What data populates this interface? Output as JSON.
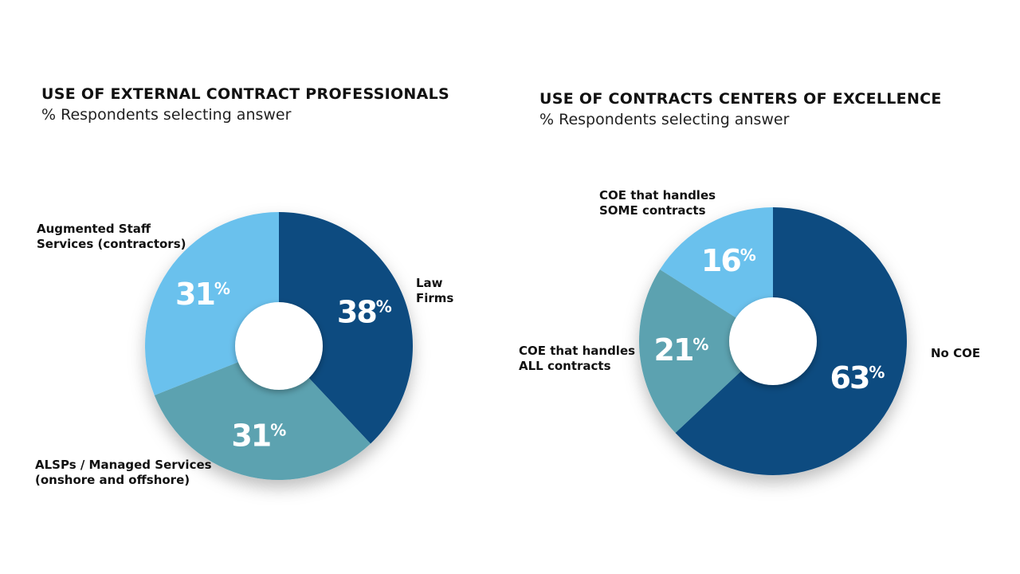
{
  "chart_data": [
    {
      "type": "pie",
      "title": "USE OF EXTERNAL CONTRACT PROFESSIONALS",
      "subtitle": "% Respondents selecting answer",
      "categories": [
        "Law Firms",
        "ALSPs / Managed Services (onshore and offshore)",
        "Augmented Staff Services (contractors)"
      ],
      "label_lines": [
        [
          "Law",
          "Firms"
        ],
        [
          "ALSPs / Managed Services",
          "(onshore and offshore)"
        ],
        [
          "Augmented Staff",
          "Services (contractors)"
        ]
      ],
      "values": [
        38,
        31,
        31
      ],
      "value_labels": [
        "38",
        "31",
        "31"
      ],
      "unit": "%",
      "colors": [
        "#0b4c80",
        "#5ca2b0",
        "#6ac1ed"
      ],
      "donut": true
    },
    {
      "type": "pie",
      "title": "USE OF CONTRACTS CENTERS OF EXCELLENCE",
      "subtitle": "% Respondents selecting answer",
      "categories": [
        "No COE",
        "COE that handles ALL contracts",
        "COE that handles SOME contracts"
      ],
      "label_lines": [
        [
          "No COE"
        ],
        [
          "COE that handles",
          "ALL contracts"
        ],
        [
          "COE that handles",
          "SOME contracts"
        ]
      ],
      "values": [
        63,
        21,
        16
      ],
      "value_labels": [
        "63",
        "21",
        "16"
      ],
      "unit": "%",
      "colors": [
        "#0b4c80",
        "#5ca2b0",
        "#6ac1ed"
      ],
      "donut": true
    }
  ]
}
